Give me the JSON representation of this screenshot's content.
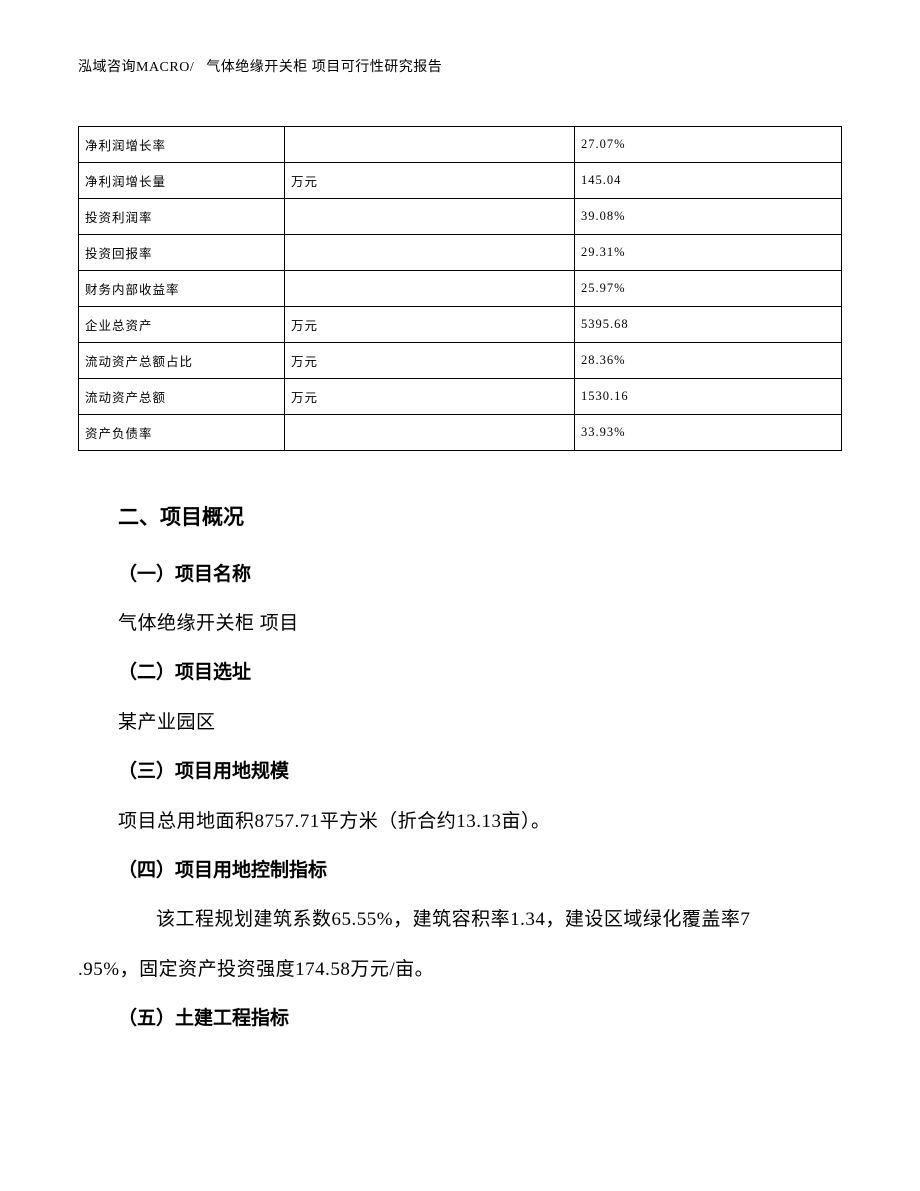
{
  "header": {
    "left": "泓域咨询MACRO/",
    "right": "气体绝缘开关柜 项目可行性研究报告"
  },
  "table": {
    "rows": [
      {
        "c1": "净利润增长率",
        "c2": "",
        "c3": "27.07%"
      },
      {
        "c1": "净利润增长量",
        "c2": "万元",
        "c3": "145.04"
      },
      {
        "c1": "投资利润率",
        "c2": "",
        "c3": "39.08%"
      },
      {
        "c1": "投资回报率",
        "c2": "",
        "c3": "29.31%"
      },
      {
        "c1": "财务内部收益率",
        "c2": "",
        "c3": "25.97%"
      },
      {
        "c1": "企业总资产",
        "c2": "万元",
        "c3": "5395.68"
      },
      {
        "c1": "流动资产总额占比",
        "c2": "万元",
        "c3": "28.36%"
      },
      {
        "c1": "流动资产总额",
        "c2": "万元",
        "c3": "1530.16"
      },
      {
        "c1": "资产负债率",
        "c2": "",
        "c3": "33.93%"
      }
    ]
  },
  "sections": {
    "title": "二、项目概况",
    "s1_h": "（一）项目名称",
    "s1_p": "气体绝缘开关柜 项目",
    "s2_h": "（二）项目选址",
    "s2_p": "某产业园区",
    "s3_h": "（三）项目用地规模",
    "s3_p": "项目总用地面积8757.71平方米（折合约13.13亩）。",
    "s4_h": "（四）项目用地控制指标",
    "s4_p_l1": "该工程规划建筑系数65.55%，建筑容积率1.34，建设区域绿化覆盖率7",
    "s4_p_l2": ".95%，固定资产投资强度174.58万元/亩。",
    "s5_h": "（五）土建工程指标"
  }
}
